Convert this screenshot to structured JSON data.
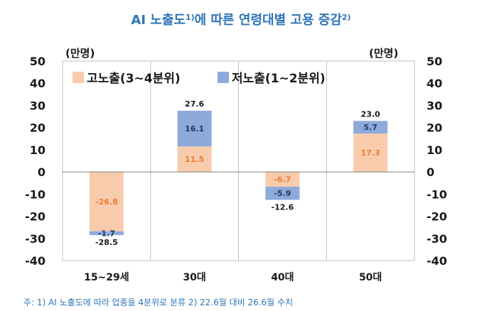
{
  "chart_data": {
    "type": "bar",
    "stacked": true,
    "title": "AI 노출도",
    "title_sup1": "1)",
    "title_rest": "에 따른 연령대별 고용 증감",
    "title_sup2": "2)",
    "unit_left": "(만명)",
    "unit_right": "(만명)",
    "categories": [
      "15~29세",
      "30대",
      "40대",
      "50대"
    ],
    "series": [
      {
        "name": "고노출(3~4분위)",
        "color": "#f8cbad",
        "label_color": "#ed7d31",
        "values": [
          -26.8,
          11.5,
          -6.7,
          17.3
        ],
        "labels": [
          "-26.8",
          "11.5",
          "-6.7",
          "17.3"
        ]
      },
      {
        "name": "저노출(1~2분위)",
        "color": "#8eaadb",
        "label_color": "#1f3864",
        "values": [
          -1.7,
          16.1,
          -5.9,
          5.7
        ],
        "labels": [
          "-1.7",
          "16.1",
          "-5.9",
          "5.7"
        ]
      }
    ],
    "totals": [
      -28.5,
      27.6,
      -12.6,
      23.0
    ],
    "total_labels": [
      "-28.5",
      "27.6",
      "-12.6",
      "23.0"
    ],
    "ylim": [
      -40,
      50
    ],
    "yticks": [
      50,
      40,
      30,
      20,
      10,
      0,
      -10,
      -20,
      -30,
      -40
    ],
    "grid": true,
    "legend_position": "top-left",
    "note": "주: 1) AI 노출도에 따라 업종을 4분위로 분류   2) 22.6월 대비 26.6월 수치"
  }
}
